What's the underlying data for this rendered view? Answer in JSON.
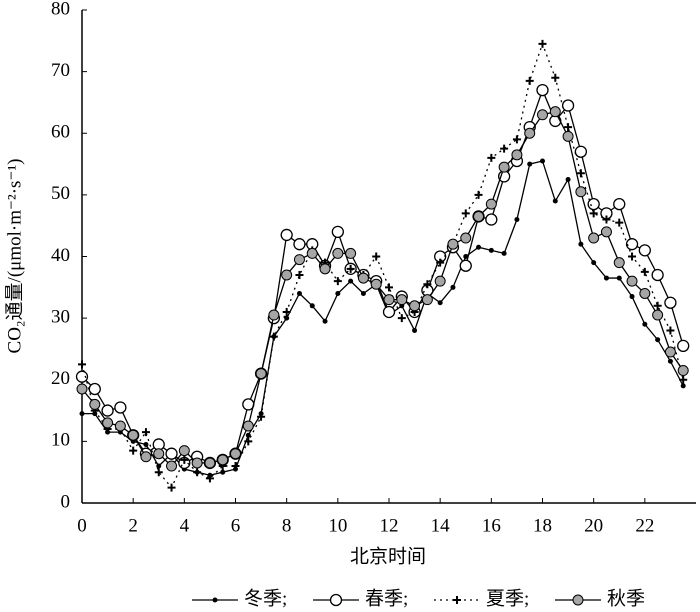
{
  "chart_data": {
    "type": "line",
    "xlabel": "北京时间",
    "ylabel": "CO₂通量/(μmol·m⁻²·s⁻¹)",
    "x": [
      0,
      0.5,
      1,
      1.5,
      2,
      2.5,
      3,
      3.5,
      4,
      4.5,
      5,
      5.5,
      6,
      6.5,
      7,
      7.5,
      8,
      8.5,
      9,
      9.5,
      10,
      10.5,
      11,
      11.5,
      12,
      12.5,
      13,
      13.5,
      14,
      14.5,
      15,
      15.5,
      16,
      16.5,
      17,
      17.5,
      18,
      18.5,
      19,
      19.5,
      20,
      20.5,
      21,
      21.5,
      22,
      22.5,
      23,
      23.5
    ],
    "xlim": [
      0,
      24
    ],
    "xticks": [
      0,
      2,
      4,
      6,
      8,
      10,
      12,
      14,
      16,
      18,
      20,
      22
    ],
    "ylim": [
      0,
      80
    ],
    "yticks": [
      0,
      10,
      20,
      30,
      40,
      50,
      60,
      70,
      80
    ],
    "series": [
      {
        "name": "冬季;",
        "color": "#000000",
        "marker": "dot",
        "line": "solid",
        "values": [
          14.5,
          14.5,
          11.5,
          11.5,
          10,
          9.5,
          6,
          8,
          5.5,
          5,
          4.5,
          5,
          5.5,
          11,
          14.5,
          27,
          30,
          34,
          32,
          29.5,
          34,
          36,
          34,
          35.5,
          30.5,
          32,
          28,
          34,
          32.5,
          35,
          40,
          41.5,
          41,
          40.5,
          46,
          55,
          55.5,
          49,
          52.5,
          42,
          39,
          36.5,
          36.5,
          33.5,
          29,
          26.5,
          23,
          19
        ]
      },
      {
        "name": "春季;",
        "color": "#000000",
        "marker": "circle",
        "line": "solid",
        "values": [
          20.5,
          18.5,
          15,
          15.5,
          11,
          8,
          9.5,
          8,
          6.5,
          7.5,
          6.5,
          7,
          8,
          16,
          21,
          30,
          43.5,
          42,
          42,
          38.5,
          44,
          38,
          37,
          36,
          31,
          33.5,
          31,
          34.5,
          40,
          41.5,
          38.5,
          46.5,
          46,
          53,
          55.5,
          61,
          67,
          62,
          64.5,
          57,
          48.5,
          47,
          48.5,
          42,
          41,
          37,
          32.5,
          25.5
        ]
      },
      {
        "name": "夏季;",
        "color": "#000000",
        "marker": "plus",
        "line": "dotted",
        "values": [
          22.5,
          15,
          12,
          12,
          8.5,
          11.5,
          5,
          2.5,
          7,
          5,
          4,
          6,
          6,
          10,
          14,
          27,
          31,
          37,
          41,
          39,
          36,
          38,
          37,
          40,
          35,
          30,
          31,
          35.5,
          39,
          42,
          47,
          50,
          56,
          57.5,
          59,
          68.5,
          74.5,
          69,
          61,
          53.5,
          47,
          46,
          45.5,
          40,
          37.5,
          32,
          28,
          20
        ]
      },
      {
        "name": "秋季",
        "color": "#000000",
        "marker": "filled-circle",
        "marker_fill": "#a6a6a6",
        "line": "solid",
        "values": [
          18.5,
          16,
          13,
          12.5,
          11,
          7.5,
          8,
          6,
          8.5,
          6.5,
          6.5,
          7,
          8,
          12.5,
          21,
          30.5,
          37,
          39.5,
          40.5,
          38,
          40.5,
          40.5,
          36.5,
          35.5,
          33,
          33,
          32,
          33,
          36,
          42,
          43,
          46.5,
          48.5,
          54.5,
          56.5,
          60,
          63,
          63.5,
          59.5,
          50.5,
          43,
          44,
          39,
          36,
          34,
          30.5,
          24.5,
          21.5
        ]
      }
    ]
  }
}
